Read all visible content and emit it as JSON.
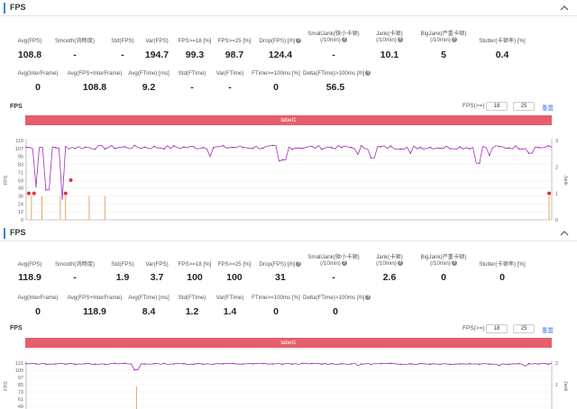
{
  "panels": [
    {
      "title": "FPS",
      "row1": [
        {
          "label": "Avg(FPS)",
          "value": "108.8"
        },
        {
          "label": "Smooth(流畅度)",
          "value": "-"
        },
        {
          "label": "Std(FPS)",
          "value": "-"
        },
        {
          "label": "Var(FPS)",
          "value": "194.7"
        },
        {
          "label": "FPS>=18 [%]",
          "value": "99.3"
        },
        {
          "label": "FPS>=25 [%]",
          "value": "98.7"
        },
        {
          "label": "Drop(FPS) [/h]",
          "value": "124.4",
          "info": true
        },
        {
          "label": "SmallJank(微小卡顿)",
          "label2": "(/10min)",
          "value": "-",
          "info": true
        },
        {
          "label": "Jank(卡顿)",
          "label2": "(/10min)",
          "value": "10.1",
          "info": true
        },
        {
          "label": "BigJank(严重卡顿)",
          "label2": "(/10min)",
          "value": "5",
          "info": true
        },
        {
          "label": "Stutter(卡顿率) [%]",
          "value": "0.4"
        }
      ],
      "row2": [
        {
          "label": "Avg(InterFrame)",
          "value": "0"
        },
        {
          "label": "Avg(FPS+InterFrame)",
          "value": "108.8"
        },
        {
          "label": "Avg(FTime) [ms]",
          "value": "9.2"
        },
        {
          "label": "Std(FTime)",
          "value": "-"
        },
        {
          "label": "Var(FTime)",
          "value": "-"
        },
        {
          "label": "FTime>=100ms [%]",
          "value": "0"
        },
        {
          "label": "Delta(FTime)>100ms [/h]",
          "value": "56.5",
          "info": true
        }
      ],
      "chart": {
        "title": "FPS",
        "fps_label": "FPS(>=)",
        "threshold1": "18",
        "threshold2": "25",
        "reset_label": "重置",
        "label_bar": "label1"
      }
    },
    {
      "title": "FPS",
      "row1": [
        {
          "label": "Avg(FPS)",
          "value": "118.9"
        },
        {
          "label": "Smooth(流畅度)",
          "value": "-"
        },
        {
          "label": "Std(FPS)",
          "value": "1.9"
        },
        {
          "label": "Var(FPS)",
          "value": "3.7"
        },
        {
          "label": "FPS>=18 [%]",
          "value": "100"
        },
        {
          "label": "FPS>=25 [%]",
          "value": "100"
        },
        {
          "label": "Drop(FPS) [/h]",
          "value": "31",
          "info": true
        },
        {
          "label": "SmallJank(微小卡顿)",
          "label2": "(/10min)",
          "value": "-",
          "info": true
        },
        {
          "label": "Jank(卡顿)",
          "label2": "(/10min)",
          "value": "2.6",
          "info": true
        },
        {
          "label": "BigJank(严重卡顿)",
          "label2": "(/10min)",
          "value": "0",
          "info": true
        },
        {
          "label": "Stutter(卡顿率) [%]",
          "value": "0"
        }
      ],
      "row2": [
        {
          "label": "Avg(InterFrame)",
          "value": "0"
        },
        {
          "label": "Avg(FPS+InterFrame)",
          "value": "118.9"
        },
        {
          "label": "Avg(FTime) [ms]",
          "value": "8.4"
        },
        {
          "label": "Std(FTime)",
          "value": "1.2"
        },
        {
          "label": "Var(FTime)",
          "value": "1.4"
        },
        {
          "label": "FTime>=100ms [%]",
          "value": "0"
        },
        {
          "label": "Delta(FTime)>100ms [/h]",
          "value": "0",
          "info": true
        }
      ],
      "chart": {
        "title": "FPS",
        "fps_label": "FPS(>=)",
        "threshold1": "18",
        "threshold2": "25",
        "reset_label": "重置",
        "label_bar": "label1"
      }
    }
  ],
  "chart_data": [
    {
      "type": "line",
      "title": "",
      "ylabel": "FPS",
      "y2label": "Jank",
      "yticks": [
        "119",
        "107",
        "95",
        "83",
        "71",
        "59",
        "48",
        "36",
        "24",
        "12",
        "0"
      ],
      "y2ticks": [
        "3",
        "2",
        "1",
        "0"
      ],
      "ylim": [
        0,
        119
      ],
      "series": [
        {
          "type": "fps-line",
          "color": "#a12eb8",
          "baseline": 108.8,
          "noise": 3,
          "dips": [
            [
              0.02,
              50
            ],
            [
              0.04,
              45
            ],
            [
              0.07,
              30
            ],
            [
              0.35,
              95
            ],
            [
              0.48,
              88
            ],
            [
              0.49,
              90
            ],
            [
              0.63,
              98
            ],
            [
              0.66,
              93
            ],
            [
              0.73,
              100
            ],
            [
              0.86,
              85
            ],
            [
              0.88,
              97
            ],
            [
              0.96,
              100
            ]
          ]
        },
        {
          "type": "jank-bars",
          "color": "#f0a35a",
          "positions": [
            0.01,
            0.03,
            0.065,
            0.075,
            0.12,
            0.15,
            0.995
          ]
        },
        {
          "type": "jank-markers",
          "color": "#e0303a",
          "points": [
            [
              0.005,
              1
            ],
            [
              0.015,
              1
            ],
            [
              0.075,
              1
            ],
            [
              0.085,
              1.5
            ],
            [
              0.995,
              1
            ]
          ]
        }
      ]
    },
    {
      "type": "line",
      "title": "",
      "ylabel": "FPS",
      "y2label": "Jank",
      "yticks": [
        "121",
        "109",
        "97",
        "85",
        "73",
        "61",
        "49"
      ],
      "y2ticks": [
        "2",
        "1"
      ],
      "ylim": [
        0,
        121
      ],
      "series": [
        {
          "type": "fps-line",
          "color": "#a12eb8",
          "baseline": 118.9,
          "noise": 1.5,
          "dips": [
            [
              0.21,
              103
            ],
            [
              0.63,
              114
            ],
            [
              0.9,
              115
            ],
            [
              0.95,
              113
            ]
          ]
        },
        {
          "type": "jank-bars",
          "color": "#f0a35a",
          "positions": [
            0.21
          ]
        }
      ]
    }
  ]
}
